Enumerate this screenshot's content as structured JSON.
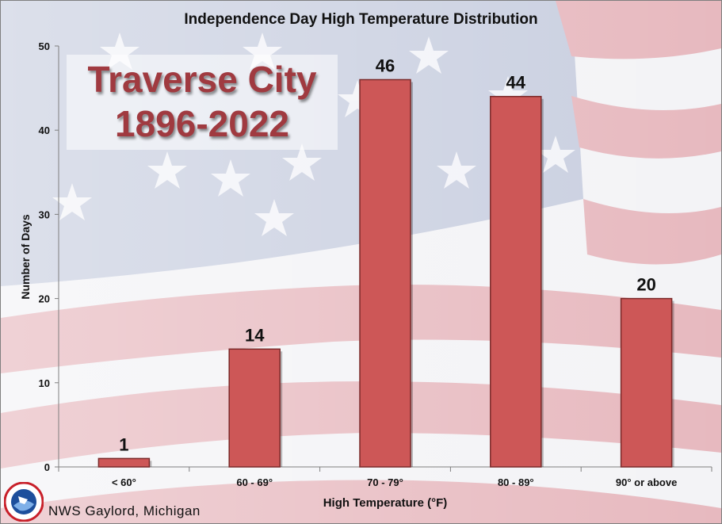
{
  "chart_data": {
    "type": "bar",
    "title": "Independence Day High Temperature Distribution",
    "xlabel": "High Temperature (°F)",
    "ylabel": "Number of Days",
    "categories": [
      "< 60°",
      "60 - 69°",
      "70 - 79°",
      "80 - 89°",
      "90° or above"
    ],
    "values": [
      1,
      14,
      46,
      44,
      20
    ],
    "ylim": [
      0,
      50
    ],
    "yticks": [
      0,
      10,
      20,
      30,
      40,
      50
    ],
    "data_labels": true,
    "grid": false,
    "bar_color": "#cd5757"
  },
  "overlay": {
    "line1": "Traverse City",
    "line2": "1896-2022"
  },
  "footer": {
    "credit": "NWS Gaylord, Michigan"
  },
  "colors": {
    "flag_red": "#e9b8bd",
    "flag_blue": "#c9cfe0",
    "overlay_text": "#a03a40"
  }
}
